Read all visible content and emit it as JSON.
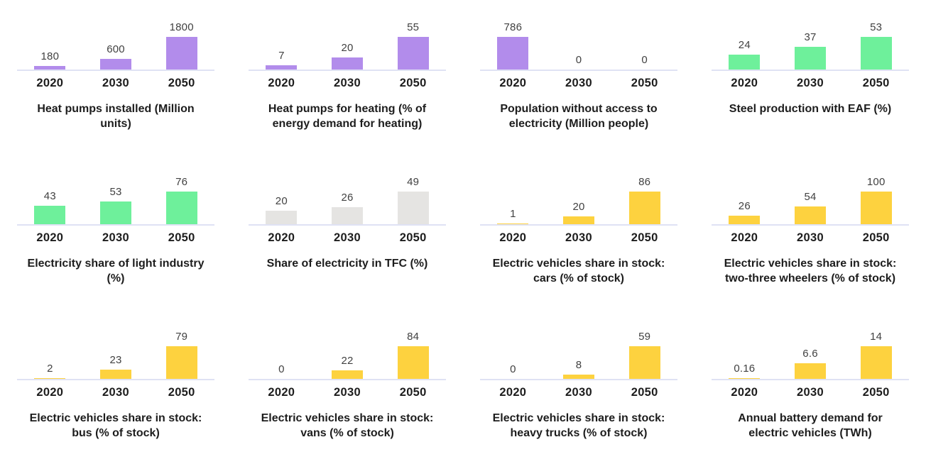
{
  "page": {
    "background": "#ffffff",
    "description": "Grid of twelve mini bar charts, 4 columns by 3 rows, each showing 2020/2030/2050 values"
  },
  "colors": {
    "purple": "#b28ceb",
    "green": "#6ef09b",
    "grey": "#e5e4e2",
    "yellow": "#fdd23f",
    "axis": "#dfe2f4",
    "title_text": "#1d1d1d",
    "value_text": "#414141"
  },
  "chart_data": [
    {
      "type": "bar",
      "title": "Heat pumps installed (Million units)",
      "categories": [
        "2020",
        "2030",
        "2050"
      ],
      "values": [
        180,
        600,
        1800
      ],
      "value_labels": [
        "180",
        "600",
        "1800"
      ],
      "color": "purple",
      "ylim": [
        0,
        1800
      ],
      "grid": false,
      "legend": "none"
    },
    {
      "type": "bar",
      "title": "Heat pumps for heating (% of energy demand for heating)",
      "categories": [
        "2020",
        "2030",
        "2050"
      ],
      "values": [
        7,
        20,
        55
      ],
      "value_labels": [
        "7",
        "20",
        "55"
      ],
      "color": "purple",
      "ylim": [
        0,
        55
      ],
      "grid": false,
      "legend": "none"
    },
    {
      "type": "bar",
      "title": "Population without access to electricity (Million people)",
      "categories": [
        "2020",
        "2030",
        "2050"
      ],
      "values": [
        786,
        0,
        0
      ],
      "value_labels": [
        "786",
        "0",
        "0"
      ],
      "color": "purple",
      "ylim": [
        0,
        786
      ],
      "grid": false,
      "legend": "none"
    },
    {
      "type": "bar",
      "title": "Steel production with EAF (%)",
      "categories": [
        "2020",
        "2030",
        "2050"
      ],
      "values": [
        24,
        37,
        53
      ],
      "value_labels": [
        "24",
        "37",
        "53"
      ],
      "color": "green",
      "ylim": [
        0,
        53
      ],
      "grid": false,
      "legend": "none"
    },
    {
      "type": "bar",
      "title": "Electricity share of light industry (%)",
      "categories": [
        "2020",
        "2030",
        "2050"
      ],
      "values": [
        43,
        53,
        76
      ],
      "value_labels": [
        "43",
        "53",
        "76"
      ],
      "color": "green",
      "ylim": [
        0,
        76
      ],
      "grid": false,
      "legend": "none"
    },
    {
      "type": "bar",
      "title": "Share of electricity in TFC (%)",
      "categories": [
        "2020",
        "2030",
        "2050"
      ],
      "values": [
        20,
        26,
        49
      ],
      "value_labels": [
        "20",
        "26",
        "49"
      ],
      "color": "grey",
      "ylim": [
        0,
        49
      ],
      "grid": false,
      "legend": "none"
    },
    {
      "type": "bar",
      "title": "Electric vehicles share in stock: cars (% of stock)",
      "categories": [
        "2020",
        "2030",
        "2050"
      ],
      "values": [
        1,
        20,
        86
      ],
      "value_labels": [
        "1",
        "20",
        "86"
      ],
      "color": "yellow",
      "ylim": [
        0,
        86
      ],
      "grid": false,
      "legend": "none"
    },
    {
      "type": "bar",
      "title": "Electric vehicles share in stock: two-three wheelers (% of stock)",
      "categories": [
        "2020",
        "2030",
        "2050"
      ],
      "values": [
        26,
        54,
        100
      ],
      "value_labels": [
        "26",
        "54",
        "100"
      ],
      "color": "yellow",
      "ylim": [
        0,
        100
      ],
      "grid": false,
      "legend": "none"
    },
    {
      "type": "bar",
      "title": "Electric vehicles share in stock: bus (% of stock)",
      "categories": [
        "2020",
        "2030",
        "2050"
      ],
      "values": [
        2,
        23,
        79
      ],
      "value_labels": [
        "2",
        "23",
        "79"
      ],
      "color": "yellow",
      "ylim": [
        0,
        79
      ],
      "grid": false,
      "legend": "none"
    },
    {
      "type": "bar",
      "title": "Electric vehicles share in stock: vans (% of stock)",
      "categories": [
        "2020",
        "2030",
        "2050"
      ],
      "values": [
        0,
        22,
        84
      ],
      "value_labels": [
        "0",
        "22",
        "84"
      ],
      "color": "yellow",
      "ylim": [
        0,
        84
      ],
      "grid": false,
      "legend": "none"
    },
    {
      "type": "bar",
      "title": "Electric vehicles share in stock: heavy trucks (% of stock)",
      "categories": [
        "2020",
        "2030",
        "2050"
      ],
      "values": [
        0,
        8,
        59
      ],
      "value_labels": [
        "0",
        "8",
        "59"
      ],
      "color": "yellow",
      "ylim": [
        0,
        59
      ],
      "grid": false,
      "legend": "none"
    },
    {
      "type": "bar",
      "title": "Annual battery demand for electric vehicles (TWh)",
      "categories": [
        "2020",
        "2030",
        "2050"
      ],
      "values": [
        0.16,
        6.6,
        14
      ],
      "value_labels": [
        "0.16",
        "6.6",
        "14"
      ],
      "color": "yellow",
      "ylim": [
        0,
        14
      ],
      "grid": false,
      "legend": "none"
    }
  ]
}
